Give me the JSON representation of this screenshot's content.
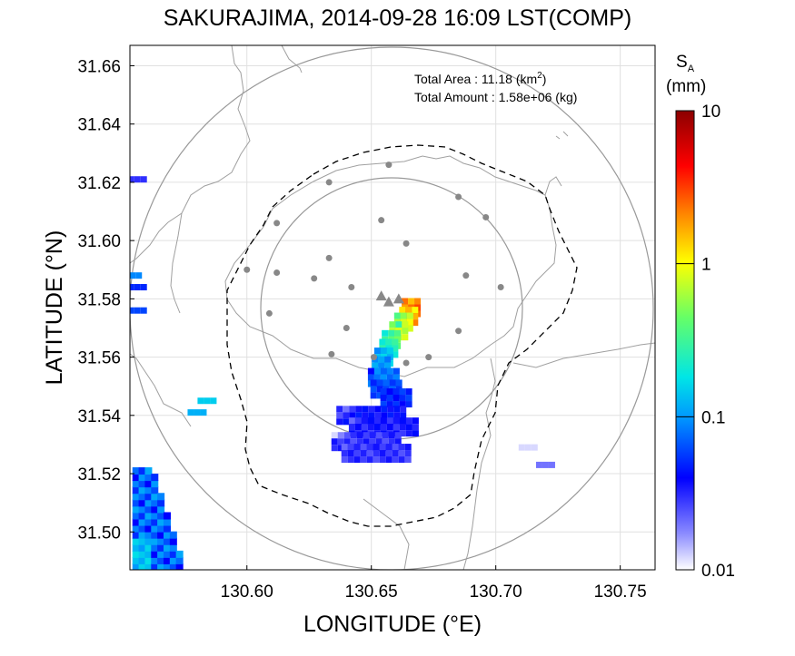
{
  "title": "SAKURAJIMA, 2014-09-28 16:09 LST(COMP)",
  "annotations": {
    "total_area_label": "Total Area  : 11.18 (km",
    "total_area_sup": "2",
    "total_area_close": ")",
    "total_amount": "Total Amount : 1.58e+06 (kg)"
  },
  "colorbar": {
    "symbol": "S",
    "symbol_sub": "A",
    "unit": "(mm)",
    "ticks": [
      "10",
      "1",
      "0.1",
      "0.01"
    ],
    "scale": "log",
    "range": [
      0.01,
      10
    ],
    "colors": [
      "#ffffff",
      "#0000ff",
      "#0096ff",
      "#00e6e6",
      "#66ff66",
      "#ffff00",
      "#ff8000",
      "#ff0000",
      "#8b0000"
    ]
  },
  "chart_data": {
    "type": "heatmap",
    "xlabel": "LONGITUDE (°E)",
    "ylabel": "LATITUDE (°N)",
    "xlim": [
      130.553,
      130.764
    ],
    "ylim": [
      31.487,
      31.667
    ],
    "x_ticks": [
      "130.60",
      "130.65",
      "130.70",
      "130.75"
    ],
    "x_tick_values": [
      130.6,
      130.65,
      130.7,
      130.75
    ],
    "y_ticks": [
      "31.66",
      "31.64",
      "31.62",
      "31.60",
      "31.58",
      "31.56",
      "31.54",
      "31.52",
      "31.50"
    ],
    "y_tick_values": [
      31.66,
      31.64,
      31.62,
      31.6,
      31.58,
      31.56,
      31.54,
      31.52,
      31.5
    ],
    "grid": true,
    "volcano_vents": [
      [
        130.654,
        31.581
      ],
      [
        130.657,
        31.579
      ],
      [
        130.661,
        31.58
      ]
    ],
    "stations": [
      [
        130.657,
        31.626
      ],
      [
        130.633,
        31.62
      ],
      [
        130.685,
        31.615
      ],
      [
        130.612,
        31.606
      ],
      [
        130.654,
        31.607
      ],
      [
        130.696,
        31.608
      ],
      [
        130.664,
        31.599
      ],
      [
        130.6,
        31.59
      ],
      [
        130.612,
        31.589
      ],
      [
        130.633,
        31.594
      ],
      [
        130.688,
        31.588
      ],
      [
        130.627,
        31.587
      ],
      [
        130.642,
        31.584
      ],
      [
        130.702,
        31.584
      ],
      [
        130.609,
        31.575
      ],
      [
        130.64,
        31.57
      ],
      [
        130.685,
        31.569
      ],
      [
        130.634,
        31.561
      ],
      [
        130.651,
        31.56
      ],
      [
        130.673,
        31.56
      ],
      [
        130.664,
        31.558
      ]
    ],
    "ash_plume": [
      {
        "lon": 130.666,
        "lat": 31.577,
        "value": 3.0
      },
      {
        "lon": 130.665,
        "lat": 31.574,
        "value": 2.0
      },
      {
        "lon": 130.663,
        "lat": 31.572,
        "value": 0.9
      },
      {
        "lon": 130.661,
        "lat": 31.569,
        "value": 0.7
      },
      {
        "lon": 130.658,
        "lat": 31.566,
        "value": 0.4
      },
      {
        "lon": 130.657,
        "lat": 31.563,
        "value": 0.25
      },
      {
        "lon": 130.655,
        "lat": 31.56,
        "value": 0.15
      },
      {
        "lon": 130.654,
        "lat": 31.557,
        "value": 0.1
      },
      {
        "lon": 130.655,
        "lat": 31.553,
        "value": 0.08
      },
      {
        "lon": 130.656,
        "lat": 31.549,
        "value": 0.06
      },
      {
        "lon": 130.66,
        "lat": 31.546,
        "value": 0.05
      },
      {
        "lon": 130.65,
        "lat": 31.54,
        "value": 0.04
      },
      {
        "lon": 130.655,
        "lat": 31.536,
        "value": 0.035
      },
      {
        "lon": 130.648,
        "lat": 31.531,
        "value": 0.03
      },
      {
        "lon": 130.652,
        "lat": 31.527,
        "value": 0.03
      }
    ]
  }
}
